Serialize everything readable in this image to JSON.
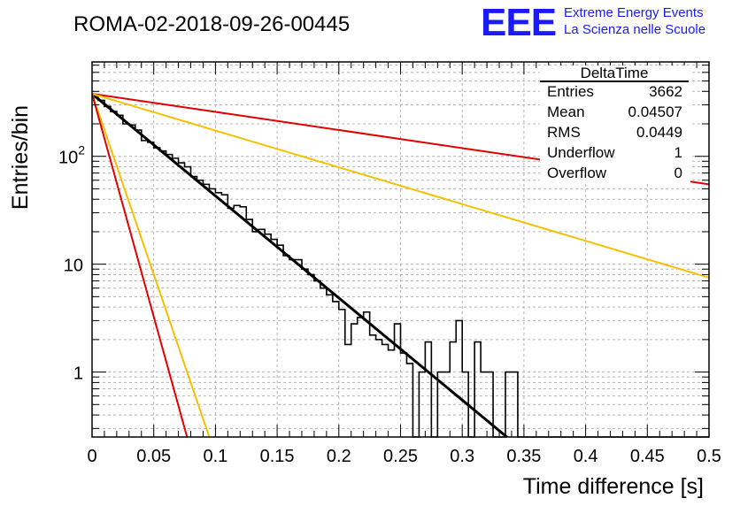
{
  "header": {
    "run_title": "ROMA-02-2018-09-26-00445",
    "logo_mark": "EEE",
    "logo_line1": "Extreme Energy Events",
    "logo_line2": "La Scienza nelle Scuole"
  },
  "stats_box": {
    "name": "DeltaTime",
    "rows": [
      {
        "label": "Entries",
        "value": "3662"
      },
      {
        "label": "Mean",
        "value": "0.04507"
      },
      {
        "label": "RMS",
        "value": "0.0449"
      },
      {
        "label": "Underflow",
        "value": "1"
      },
      {
        "label": "Overflow",
        "value": "0"
      }
    ]
  },
  "colors": {
    "histogram": "#000000",
    "fit": "#000000",
    "red_lines": "#e00000",
    "yellow_lines": "#f5c000",
    "grid": "#b4b4b4",
    "logo": "#1a1aff"
  },
  "chart_data": {
    "type": "line",
    "title": "ROMA-02-2018-09-26-00445",
    "xlabel": "Time difference [s]",
    "ylabel": "Entries/bin",
    "xlim": [
      0,
      0.5
    ],
    "ylim": [
      0.25,
      750
    ],
    "yscale": "log",
    "grid": true,
    "legend": "top-right stats box",
    "x_ticks": [
      "0",
      "0.05",
      "0.1",
      "0.15",
      "0.2",
      "0.25",
      "0.3",
      "0.35",
      "0.4",
      "0.45",
      "0.5"
    ],
    "y_ticks": [
      "1",
      "10",
      "10^2"
    ],
    "histogram": {
      "bin_width": 0.005,
      "counts": [
        350,
        330,
        290,
        260,
        240,
        200,
        195,
        175,
        140,
        135,
        120,
        112,
        104,
        96,
        87,
        80,
        65,
        60,
        55,
        50,
        46,
        44,
        33,
        35,
        34,
        26,
        20,
        21,
        19,
        17,
        15,
        12,
        11,
        11,
        9,
        8,
        7,
        6,
        5.2,
        4.5,
        3.8,
        1.8,
        2.8,
        3.2,
        3.6,
        2.2,
        2.0,
        1.8,
        1.6,
        2.8,
        1.5,
        1.2,
        0.2,
        1.0,
        1.9,
        0.2,
        1.0,
        1.0,
        1.9,
        3.0,
        1.0,
        0.2,
        1.9,
        1.0,
        1.0,
        0.2,
        0.2,
        1.0,
        1.0,
        0.2,
        0.2,
        0.2,
        0.2,
        0.2,
        0.2,
        0.2,
        0.2,
        0.2,
        0.2,
        0.2,
        0.2,
        0.2,
        0.2,
        0.2,
        0.2,
        0.2,
        0.2,
        0.2,
        0.2,
        0.2,
        0.2,
        0.2,
        0.2,
        0.2,
        0.2,
        0.2,
        0.2,
        0.2,
        0.2,
        0.2
      ]
    },
    "series": [
      {
        "color": "black",
        "width": 3,
        "points": [
          [
            0.0,
            380
          ],
          [
            0.34,
            0.23
          ]
        ]
      },
      {
        "color": "red",
        "width": 2,
        "points": [
          [
            0.0,
            380
          ],
          [
            0.5,
            55
          ]
        ]
      },
      {
        "color": "yellow",
        "width": 2,
        "points": [
          [
            0.0,
            380
          ],
          [
            0.5,
            7.5
          ]
        ]
      },
      {
        "color": "yellow",
        "width": 2,
        "points": [
          [
            0.0,
            380
          ],
          [
            0.095,
            0.25
          ]
        ]
      },
      {
        "color": "red",
        "width": 2,
        "points": [
          [
            0.0,
            380
          ],
          [
            0.077,
            0.25
          ]
        ]
      }
    ]
  }
}
